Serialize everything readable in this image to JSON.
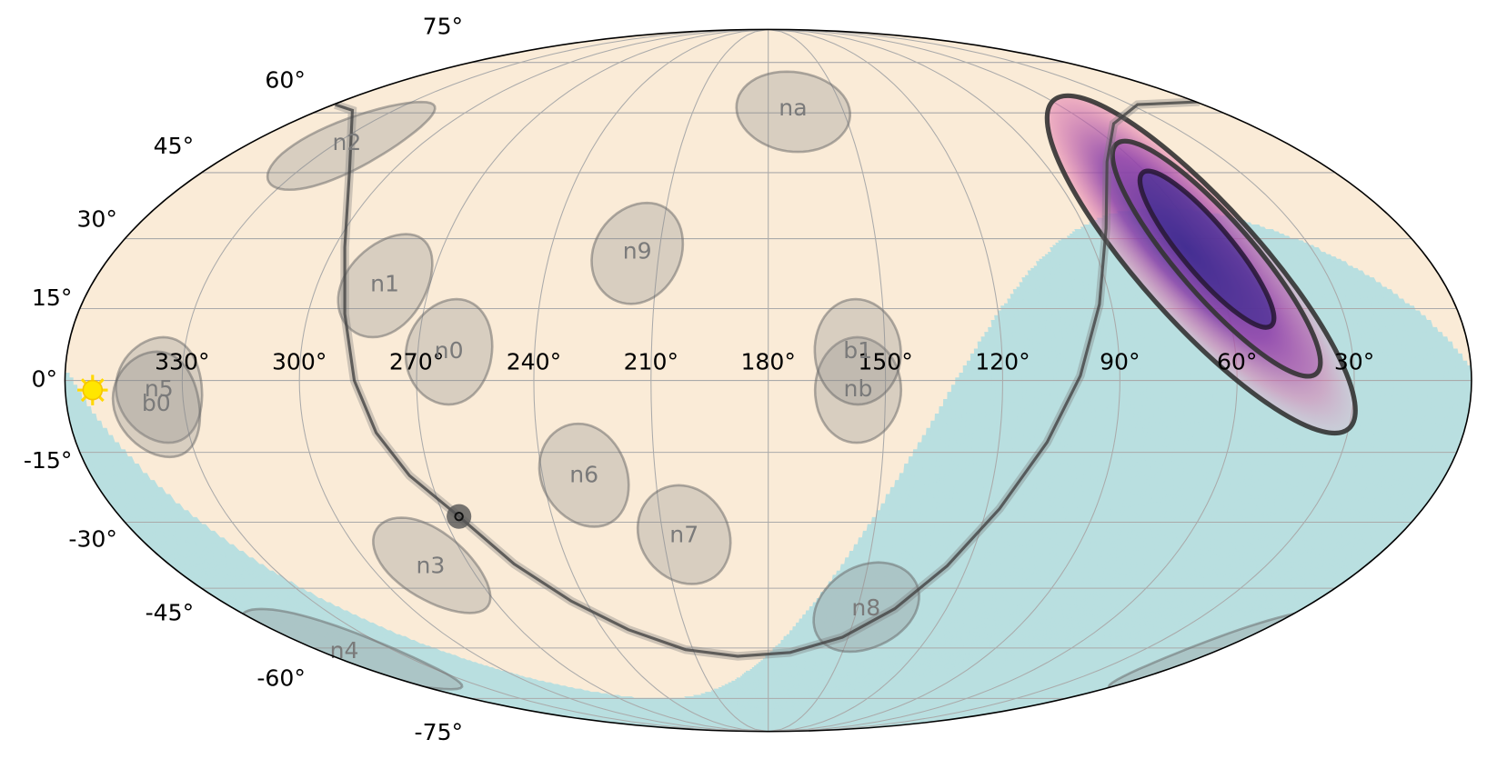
{
  "map": {
    "lon_ticks": [
      {
        "value": 330,
        "label": "330°"
      },
      {
        "value": 300,
        "label": "300°"
      },
      {
        "value": 270,
        "label": "270°"
      },
      {
        "value": 240,
        "label": "240°"
      },
      {
        "value": 210,
        "label": "210°"
      },
      {
        "value": 180,
        "label": "180°"
      },
      {
        "value": 150,
        "label": "150°"
      },
      {
        "value": 120,
        "label": "120°"
      },
      {
        "value": 90,
        "label": "90°"
      },
      {
        "value": 60,
        "label": "60°"
      },
      {
        "value": 30,
        "label": "30°"
      }
    ],
    "lat_ticks": [
      {
        "value": 75,
        "label": "75°"
      },
      {
        "value": 60,
        "label": "60°"
      },
      {
        "value": 45,
        "label": "45°"
      },
      {
        "value": 30,
        "label": "30°"
      },
      {
        "value": 15,
        "label": "15°"
      },
      {
        "value": 0,
        "label": "0°"
      },
      {
        "value": -15,
        "label": "-15°"
      },
      {
        "value": -30,
        "label": "-30°"
      },
      {
        "value": -45,
        "label": "-45°"
      },
      {
        "value": -60,
        "label": "-60°"
      },
      {
        "value": -75,
        "label": "-75°"
      }
    ],
    "detectors": [
      {
        "label": "n0",
        "lon": 262,
        "lat": 6
      },
      {
        "label": "n1",
        "lon": 282,
        "lat": 20
      },
      {
        "label": "n2",
        "lon": 326,
        "lat": 52
      },
      {
        "label": "n3",
        "lon": 282,
        "lat": -40
      },
      {
        "label": "n4",
        "lon": 351,
        "lat": -61
      },
      {
        "label": "n5",
        "lon": 336,
        "lat": -2
      },
      {
        "label": "n6",
        "lon": 229,
        "lat": -20
      },
      {
        "label": "n7",
        "lon": 204,
        "lat": -33
      },
      {
        "label": "n8",
        "lon": 147,
        "lat": -50
      },
      {
        "label": "n9",
        "lon": 216,
        "lat": 27
      },
      {
        "label": "na",
        "lon": 170,
        "lat": 61
      },
      {
        "label": "nb",
        "lon": 157,
        "lat": -2
      },
      {
        "label": "b0",
        "lon": 337,
        "lat": -5
      },
      {
        "label": "b1",
        "lon": 157,
        "lat": 6
      }
    ],
    "sun": {
      "lon": 353,
      "lat": -2
    }
  }
}
